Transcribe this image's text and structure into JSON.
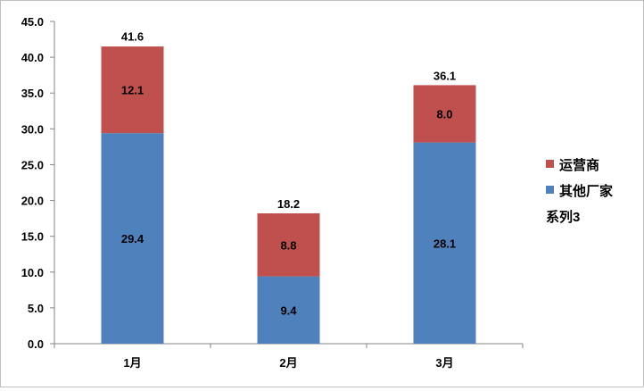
{
  "chart_data": {
    "type": "bar",
    "stacked": true,
    "categories": [
      "1月",
      "2月",
      "3月"
    ],
    "series": [
      {
        "name": "其他厂家",
        "color": "#4f81bd",
        "values": [
          29.4,
          9.4,
          28.1
        ]
      },
      {
        "name": "运营商",
        "color": "#c0504d",
        "values": [
          12.1,
          8.8,
          8.0
        ]
      },
      {
        "name": "系列3",
        "color": "",
        "values": [
          0,
          0,
          0
        ]
      }
    ],
    "totals": [
      41.6,
      18.2,
      36.1
    ],
    "ylim": [
      0,
      45
    ],
    "ytick_step": 5,
    "ytick_labels": [
      "0.0",
      "5.0",
      "10.0",
      "15.0",
      "20.0",
      "25.0",
      "30.0",
      "35.0",
      "40.0",
      "45.0"
    ],
    "grid": false,
    "legend_position": "right",
    "legend": [
      {
        "label": "运营商",
        "color": "#c0504d",
        "marker": true
      },
      {
        "label": "其他厂家",
        "color": "#4f81bd",
        "marker": true
      },
      {
        "label": "系列3",
        "color": "",
        "marker": false
      }
    ]
  }
}
